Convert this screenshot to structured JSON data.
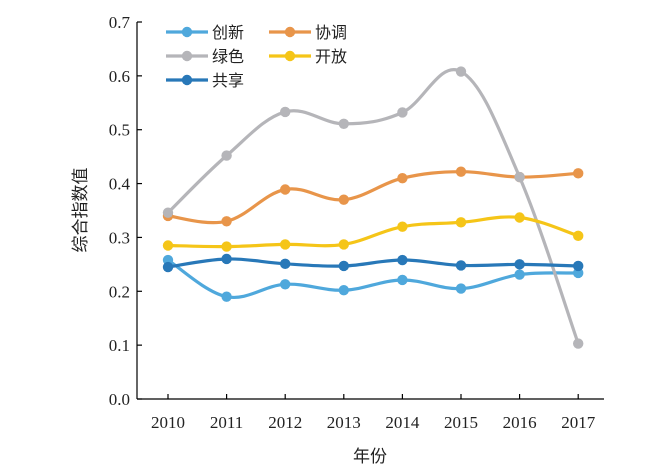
{
  "chart_data": {
    "type": "line",
    "title": "",
    "xlabel": "年份",
    "ylabel": "综合指数值",
    "categories": [
      "2010",
      "2011",
      "2012",
      "2013",
      "2014",
      "2015",
      "2016",
      "2017"
    ],
    "ylim": [
      0,
      0.7
    ],
    "yticks": [
      "0.0",
      "0.1",
      "0.2",
      "0.3",
      "0.4",
      "0.5",
      "0.6",
      "0.7"
    ],
    "grid": false,
    "legend_position": "top-left",
    "series": [
      {
        "name": "创新",
        "color": "#4fa8dc",
        "values": [
          0.258,
          0.19,
          0.213,
          0.202,
          0.221,
          0.205,
          0.231,
          0.234
        ]
      },
      {
        "name": "协调",
        "color": "#e8954a",
        "values": [
          0.34,
          0.33,
          0.389,
          0.37,
          0.41,
          0.422,
          0.412,
          0.419
        ]
      },
      {
        "name": "绿色",
        "color": "#b5b5b9",
        "values": [
          0.346,
          0.452,
          0.533,
          0.511,
          0.532,
          0.608,
          0.412,
          0.103
        ]
      },
      {
        "name": "开放",
        "color": "#f5c518",
        "values": [
          0.285,
          0.283,
          0.287,
          0.287,
          0.32,
          0.328,
          0.337,
          0.303
        ]
      },
      {
        "name": "共享",
        "color": "#2878b8",
        "values": [
          0.245,
          0.26,
          0.251,
          0.247,
          0.258,
          0.248,
          0.25,
          0.247
        ]
      }
    ]
  }
}
